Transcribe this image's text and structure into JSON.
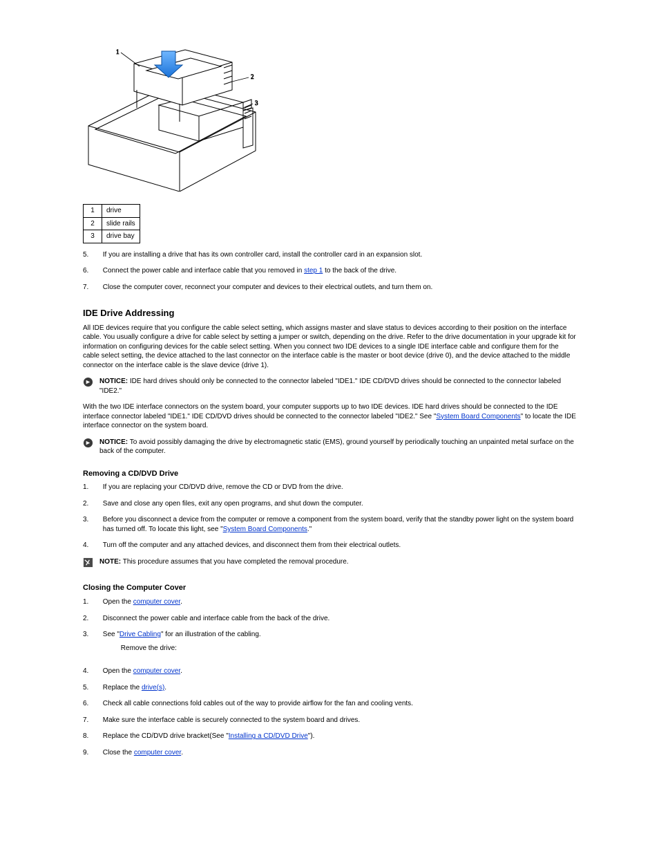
{
  "legend": {
    "rows": [
      {
        "n": "1",
        "label": "drive"
      },
      {
        "n": "2",
        "label": "slide rails"
      },
      {
        "n": "3",
        "label": "drive bay"
      }
    ]
  },
  "steps_top": [
    {
      "n": "5.",
      "html": "If you are installing a drive that has its own controller card, install the controller card in an expansion slot."
    },
    {
      "n": "6.",
      "html": "Connect the power cable and interface cable that you removed in <a class=\"link\" href=\"#\" data-name=\"link-step1\" data-interactable=\"true\">step 1</a> to the back of the drive."
    },
    {
      "n": "7.",
      "html": "Close the computer cover, reconnect your computer and devices to their electrical outlets, and turn them on."
    }
  ],
  "section_titles": {
    "ide": "IDE Drive Addressing",
    "removing_cd": "Removing a CD/DVD Drive",
    "closing": "Closing the Computer Cover"
  },
  "ide_para": "All IDE devices require that you configure the cable select setting, which assigns master and slave status to devices according to their position on the interface cable. You usually configure a drive for cable select by setting a jumper or switch, depending on the drive. Refer to the drive documentation in your upgrade kit for information on configuring devices for the cable select setting. When you connect two IDE devices to a single IDE interface cable and configure them for the cable select setting, the device attached to the last connector on the interface cable is the master or boot device (drive 0), and the device attached to the middle connector on the interface cable is the slave device (drive 1).",
  "notice1": {
    "label": "NOTICE:",
    "text": " IDE hard drives should only be connected to the connector labeled \"IDE1.\" IDE CD/DVD drives should be connected to the connector labeled \"IDE2.\""
  },
  "ide_para2_pre": "With the two IDE interface connectors on the system board, your computer supports up to two IDE devices. IDE hard drives should be connected to the IDE interface connector labeled \"IDE1.\" IDE CD/DVD drives should be connected to the connector labeled \"IDE2.\" See \"",
  "ide_para2_link": "System Board Components",
  "ide_para2_post": "\" to locate the IDE interface connector on the system board.",
  "notice2": {
    "label": "NOTICE:",
    "text": " To avoid possibly damaging the drive by electromagnetic static (EMS), ground yourself by periodically touching an unpainted metal surface on the back of the computer."
  },
  "removing_steps": [
    {
      "n": "1.",
      "text": "If you are replacing your CD/DVD drive, remove the CD or DVD from the drive."
    },
    {
      "n": "2.",
      "text": "Save and close any open files, exit any open programs, and shut down the computer."
    },
    {
      "n": "3.",
      "text": "Before you disconnect a device from the computer or remove a component from the system board, verify that the standby power light on the system board has turned off. To locate this light, see \""
    },
    {
      "n": "4.",
      "text": "Turn off the computer and any attached devices, and disconnect them from their electrical outlets."
    }
  ],
  "removing_link": "System Board Components",
  "note": {
    "label": "NOTE:",
    "text": " This procedure assumes that you have completed the removal procedure."
  },
  "closing_steps": [
    {
      "n": "1.",
      "pre": "Open the ",
      "link": "computer cover",
      "post": "."
    },
    {
      "n": "2.",
      "text": "Disconnect the power cable and interface cable from the back of the drive."
    },
    {
      "n": "3.",
      "pre": "See \"",
      "link": "Drive Cabling",
      "post": "\" for an illustration of the cabling.",
      "tail": "Remove the drive:"
    },
    {
      "n": "4.",
      "pre": "Open the ",
      "link": "computer cover",
      "post": "."
    },
    {
      "n": "5.",
      "pre": "Replace the ",
      "link": "drive(s)",
      "post": "."
    },
    {
      "n": "6.",
      "text": "Check all cable connections fold cables out of the way to provide airflow for the fan and cooling vents."
    },
    {
      "n": "7.",
      "text": "Make sure the interface cable is securely connected to the system board and drives."
    },
    {
      "n": "8.",
      "pre": "Replace the CD/DVD drive bracket(See \"",
      "link": "Installing a CD/DVD Drive",
      "post": "\")."
    },
    {
      "n": "9.",
      "pre": "Close the ",
      "link": "computer cover",
      "post": "."
    }
  ]
}
